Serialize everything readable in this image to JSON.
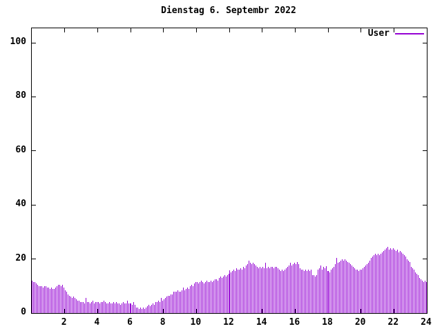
{
  "window": {
    "background": "#ffffff",
    "axis_color": "#000000"
  },
  "chart_data": {
    "type": "bar",
    "title": "Dienstag 6. Septembr 2022",
    "series": [
      {
        "name": "User",
        "color": "#9400d3"
      }
    ],
    "xlabel": "",
    "ylabel": "",
    "xlim": [
      0,
      24
    ],
    "ylim": [
      0,
      105
    ],
    "xticks": [
      2,
      4,
      6,
      8,
      10,
      12,
      14,
      16,
      18,
      20,
      22,
      24
    ],
    "yticks": [
      0,
      20,
      40,
      60,
      80,
      100
    ],
    "grid": false,
    "legend_position": "top-right",
    "x_step_minutes": 5,
    "values": [
      12,
      11.5,
      11.5,
      11,
      10.5,
      10,
      10,
      10,
      9.5,
      10,
      10,
      9.5,
      9.5,
      9,
      9.5,
      9,
      9,
      9.5,
      10,
      10.5,
      10.5,
      10,
      10.5,
      9.5,
      8.5,
      8,
      7,
      6.5,
      6,
      5.5,
      6,
      5.5,
      5,
      4.5,
      4.5,
      4,
      4,
      4,
      3.5,
      5.5,
      4,
      4,
      3.5,
      4,
      4.7,
      3.5,
      4,
      4,
      4,
      3.5,
      4,
      4,
      4.5,
      4,
      3.5,
      3.5,
      4,
      3.5,
      3.5,
      4,
      3.5,
      4,
      3.5,
      3.5,
      3,
      3.5,
      4,
      3.5,
      3.5,
      4.5,
      3.5,
      3.5,
      3.5,
      3,
      4,
      3,
      2,
      2,
      1.5,
      2,
      1.5,
      2,
      1.5,
      2,
      2.5,
      3,
      2.5,
      3,
      3.5,
      3,
      4,
      4,
      4.5,
      4,
      5.5,
      4.5,
      5,
      5.5,
      6,
      6.5,
      6.5,
      7,
      7,
      8,
      8,
      8,
      8.5,
      8,
      8,
      8.5,
      9.5,
      8.5,
      9,
      9.5,
      9,
      10,
      10.5,
      10,
      11,
      11.5,
      11.5,
      11,
      11.5,
      12,
      11.5,
      11,
      11.5,
      12,
      11.5,
      11.5,
      12,
      11.5,
      12,
      12.5,
      12.5,
      12,
      13,
      13.5,
      13,
      13.5,
      14,
      13.5,
      14,
      14.5,
      15.8,
      15,
      15.5,
      16,
      15.5,
      16.5,
      16,
      16,
      16.5,
      16,
      17,
      16.5,
      17.5,
      18,
      19.3,
      18.5,
      18,
      18.5,
      18,
      17.5,
      17,
      16.5,
      17,
      16.5,
      17,
      16.5,
      18.5,
      16.5,
      17,
      16.5,
      17,
      17,
      16.5,
      17,
      17,
      16.5,
      16,
      15.5,
      16,
      15.5,
      16,
      16.5,
      17,
      17.5,
      18.5,
      17.5,
      18,
      18.5,
      18,
      19,
      18,
      16.5,
      16,
      16,
      15.5,
      16,
      15.5,
      16,
      15.5,
      16,
      14,
      14,
      13.5,
      14,
      16,
      16.5,
      17.5,
      16,
      17,
      16.5,
      17.3,
      15.5,
      15.5,
      15,
      16,
      16.5,
      17,
      18,
      20.4,
      18.5,
      19,
      19.5,
      20,
      19.5,
      20,
      19.5,
      19,
      18.5,
      18,
      17.5,
      17,
      16.5,
      16,
      16,
      15.5,
      16,
      16,
      16.5,
      17,
      17.5,
      18,
      18.5,
      19.5,
      20.5,
      21,
      21.5,
      22,
      21.5,
      22,
      21.5,
      22,
      22.5,
      23,
      23.5,
      24,
      24.5,
      23.5,
      24,
      23.5,
      24,
      23.5,
      23,
      23.5,
      22.5,
      23,
      22.5,
      22,
      21.5,
      21,
      20,
      19.5,
      19,
      17,
      16.5,
      16,
      15,
      14.5,
      14,
      13,
      12.5,
      12,
      11.5,
      12,
      11.5
    ]
  }
}
